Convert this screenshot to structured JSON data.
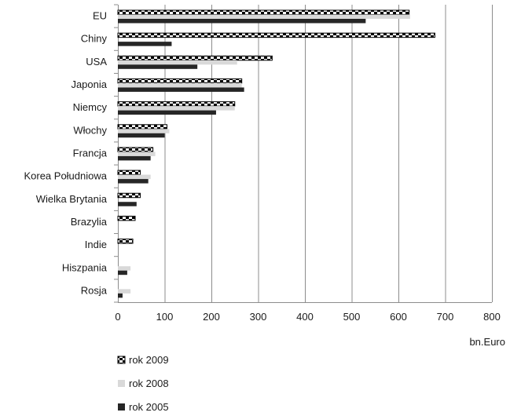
{
  "chart_data": {
    "type": "bar",
    "orientation": "horizontal",
    "categories": [
      "EU",
      "Chiny",
      "USA",
      "Japonia",
      "Niemcy",
      "Włochy",
      "Francja",
      "Korea Południowa",
      "Wielka Brytania",
      "Brazylia",
      "Indie",
      "Hiszpania",
      "Rosja"
    ],
    "series": [
      {
        "name": "rok 2009",
        "values": [
          623,
          678,
          330,
          265,
          250,
          105,
          75,
          48,
          48,
          37,
          32,
          0,
          0
        ],
        "color": "#000000",
        "pattern": "checkered"
      },
      {
        "name": "rok 2008",
        "values": [
          625,
          0,
          255,
          265,
          250,
          110,
          80,
          70,
          0,
          0,
          0,
          27,
          27
        ],
        "color": "#d9d9d9"
      },
      {
        "name": "rok 2005",
        "values": [
          530,
          115,
          170,
          270,
          210,
          100,
          70,
          65,
          40,
          0,
          0,
          20,
          10
        ],
        "color": "#262626"
      }
    ],
    "xlim": [
      0,
      800
    ],
    "x_ticks": [
      "0",
      "100",
      "200",
      "300",
      "400",
      "500",
      "600",
      "700",
      "800"
    ],
    "xlabel": "bn.Euro",
    "grid": "vertical",
    "legend_position": "bottom-left"
  }
}
